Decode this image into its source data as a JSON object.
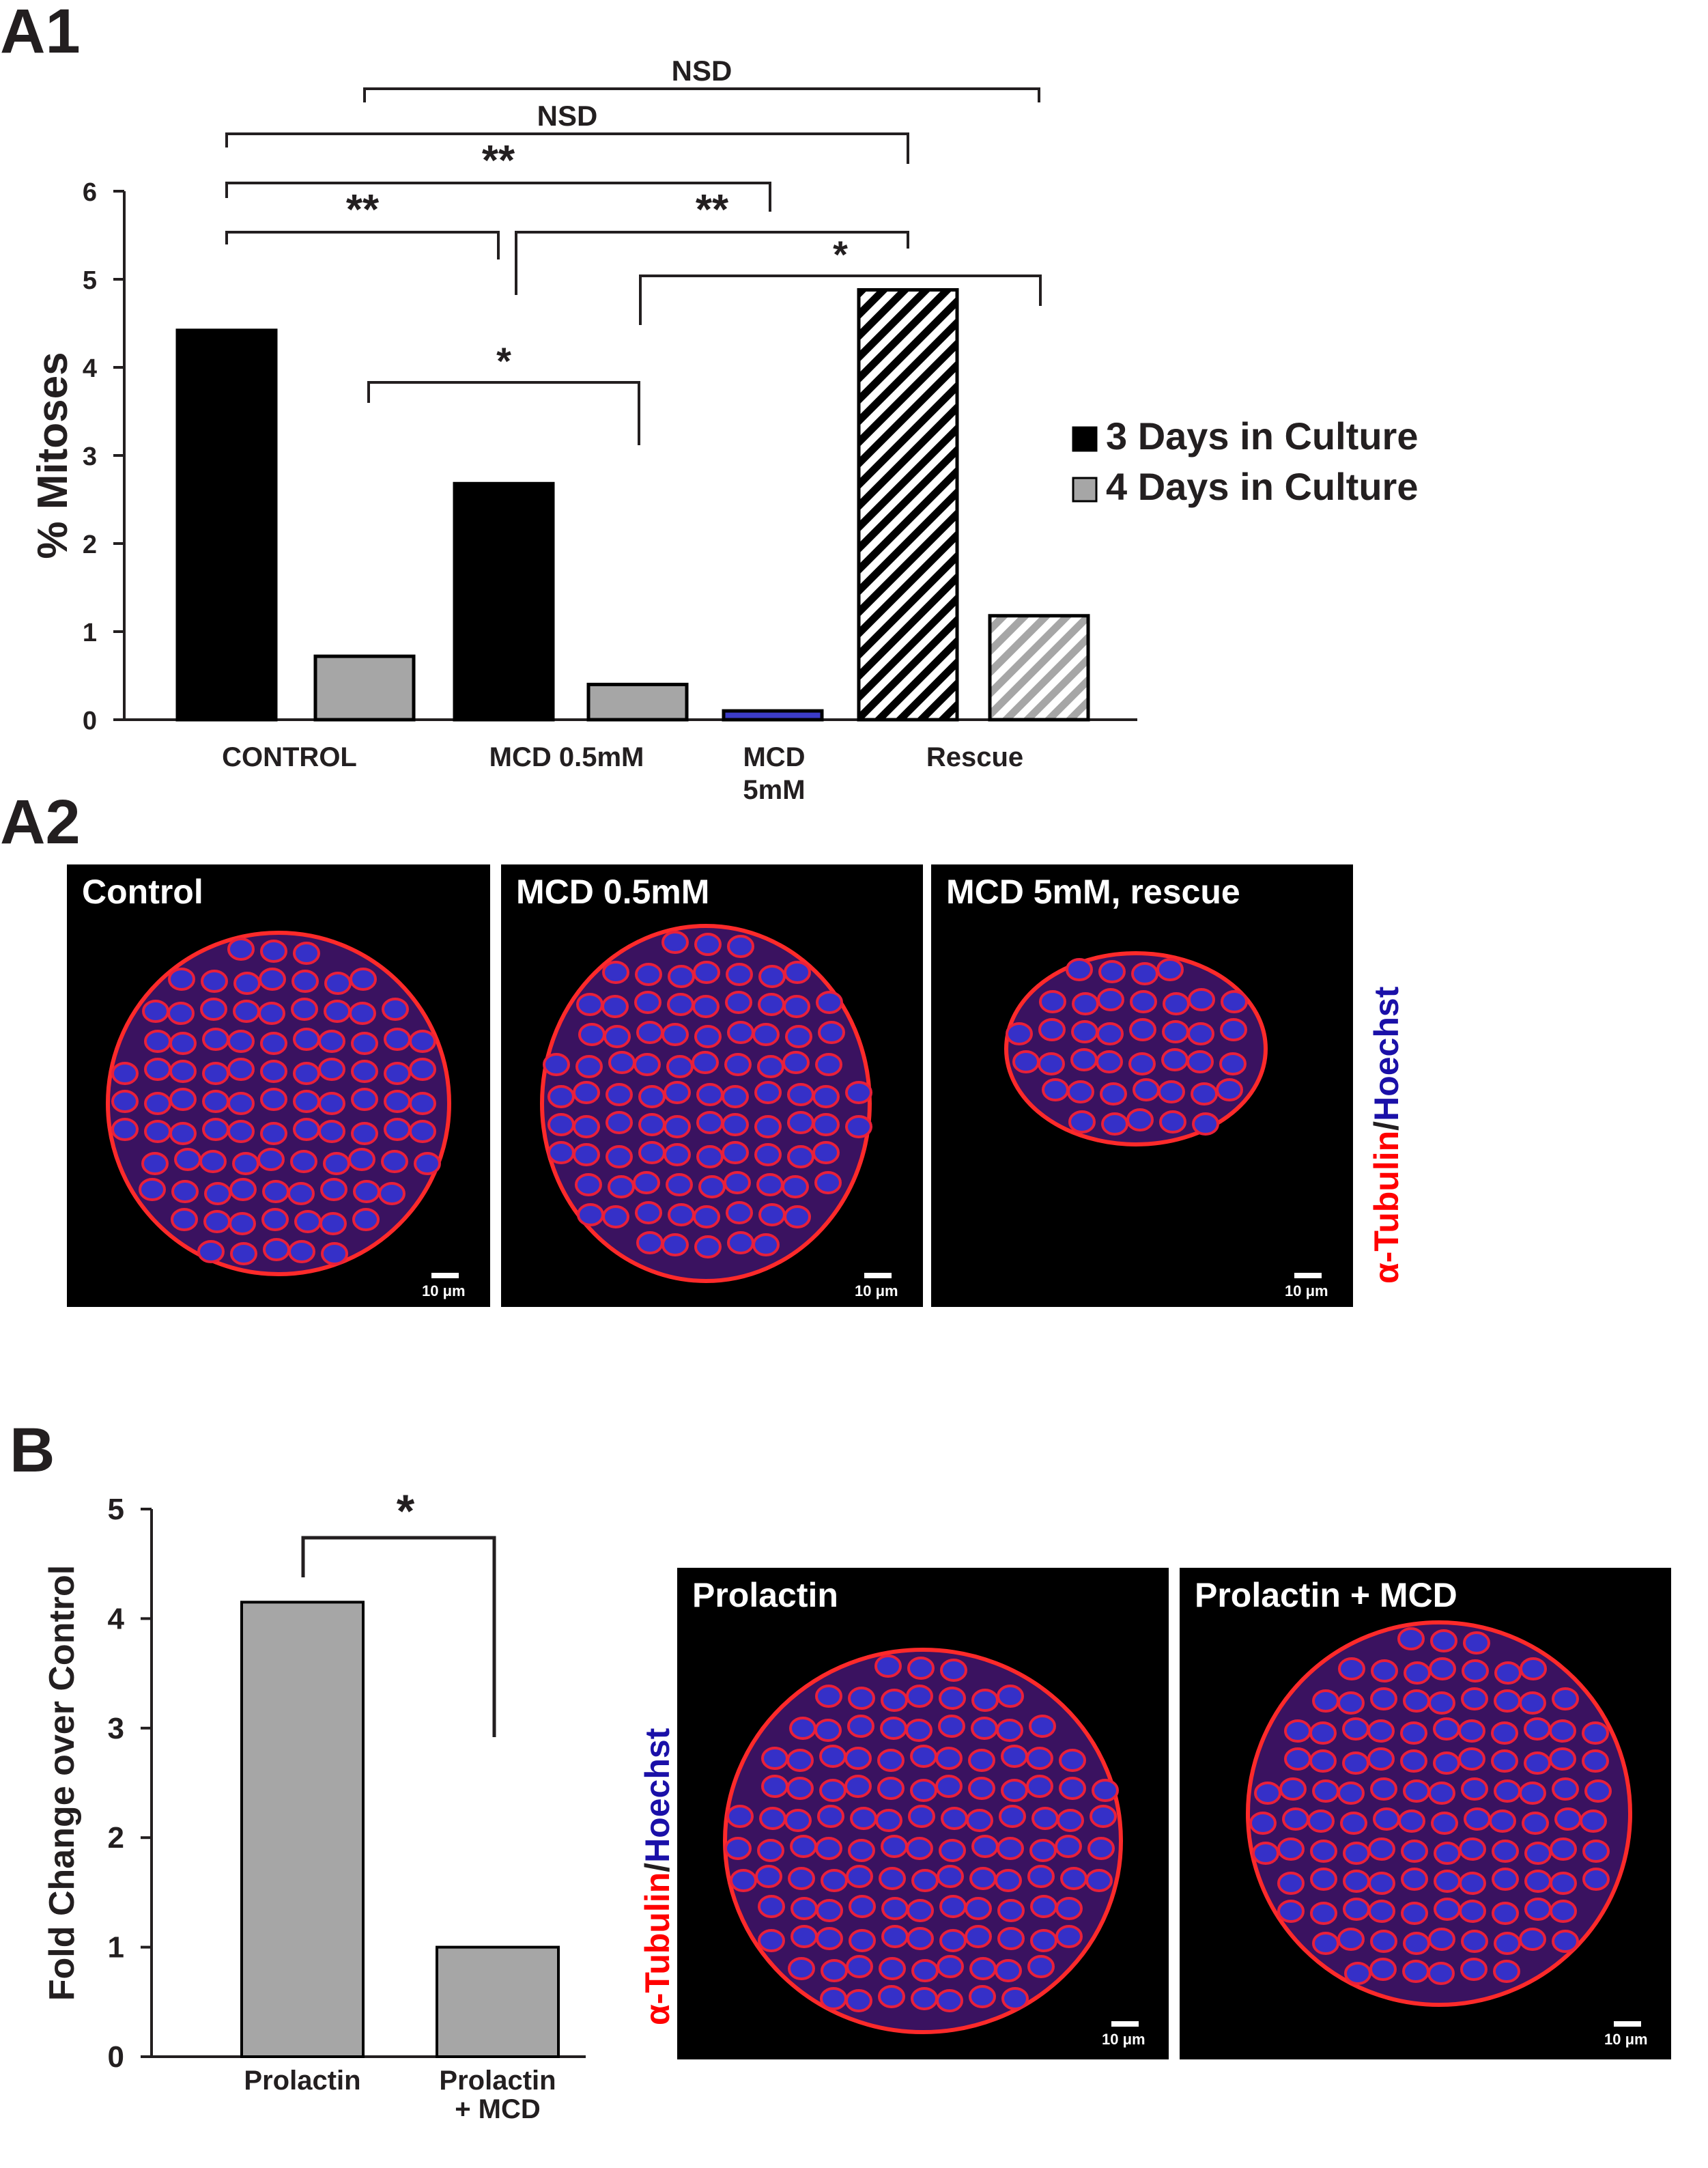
{
  "panels": {
    "a1": "A1",
    "a2": "A2",
    "b": "B"
  },
  "chart_data": [
    {
      "type": "bar",
      "panel": "A1",
      "ylabel": "% Mitoses",
      "ylim": [
        0,
        6
      ],
      "yticks": [
        0,
        1,
        2,
        3,
        4,
        5,
        6
      ],
      "categories": [
        "CONTROL",
        "MCD 0.5mM",
        "MCD\n5mM",
        "Rescue"
      ],
      "bars": [
        {
          "group": "CONTROL",
          "series": "3 Days in Culture",
          "value": 4.42,
          "pattern": "solid-black"
        },
        {
          "group": "CONTROL",
          "series": "4 Days in Culture",
          "value": 0.72,
          "pattern": "solid-gray"
        },
        {
          "group": "MCD 0.5mM",
          "series": "3 Days in Culture",
          "value": 2.68,
          "pattern": "solid-black"
        },
        {
          "group": "MCD 0.5mM",
          "series": "4 Days in Culture",
          "value": 0.4,
          "pattern": "solid-gray"
        },
        {
          "group": "MCD\n5mM",
          "series": "3 Days in Culture",
          "value": 0.1,
          "pattern": "solid-blue"
        },
        {
          "group": "Rescue",
          "series": "3 Days in Culture",
          "value": 4.88,
          "pattern": "hatch-black"
        },
        {
          "group": "Rescue",
          "series": "4 Days in Culture",
          "value": 1.18,
          "pattern": "hatch-gray"
        }
      ],
      "legend": {
        "position": "right",
        "entries": [
          {
            "label": "3 Days in Culture",
            "color": "#000000"
          },
          {
            "label": "4 Days in Culture",
            "color": "#a6a6a6"
          }
        ]
      },
      "significance": [
        {
          "from": "CONTROL 4 Days",
          "to": "Rescue 4 Days",
          "label": "NSD"
        },
        {
          "from": "CONTROL 3 Days",
          "to": "Rescue 3 Days",
          "label": "NSD"
        },
        {
          "from": "CONTROL 3 Days",
          "to": "MCD 5mM",
          "label": "**"
        },
        {
          "from": "CONTROL 3 Days",
          "to": "MCD 0.5mM 3 Days",
          "label": "**"
        },
        {
          "from": "MCD 0.5mM 3 Days",
          "to": "Rescue 3 Days",
          "label": "**"
        },
        {
          "from": "MCD 0.5mM 4 Days",
          "to": "Rescue 4 Days",
          "label": "*"
        },
        {
          "from": "CONTROL 4 Days",
          "to": "MCD 0.5mM 4 Days",
          "label": "*"
        }
      ],
      "colors": {
        "black": "#000000",
        "gray": "#a6a6a6",
        "blue": "#3c3cc8"
      }
    },
    {
      "type": "bar",
      "panel": "B",
      "ylabel": "Fold Change over Control",
      "ylim": [
        0,
        5
      ],
      "yticks": [
        0,
        1,
        2,
        3,
        4,
        5
      ],
      "categories": [
        "Prolactin",
        "Prolactin\n+ MCD"
      ],
      "values": [
        4.15,
        1.0
      ],
      "colors": {
        "bar": "#a6a6a6"
      },
      "significance": [
        {
          "from": "Prolactin",
          "to": "Prolactin + MCD",
          "label": "*"
        }
      ]
    }
  ],
  "images": {
    "a2": [
      {
        "title": "Control",
        "scale": "10 μm"
      },
      {
        "title": "MCD 0.5mM",
        "scale": "10 μm"
      },
      {
        "title": "MCD 5mM, rescue",
        "scale": "10 μm"
      }
    ],
    "b": [
      {
        "title": "Prolactin",
        "scale": "10 μm"
      },
      {
        "title": "Prolactin + MCD",
        "scale": "10 μm"
      }
    ],
    "stain": {
      "red": "α-Tubulin",
      "slash": "/",
      "blue": "Hoechst",
      "red_color": "#ff0000",
      "blue_color": "#1a10a8"
    }
  }
}
